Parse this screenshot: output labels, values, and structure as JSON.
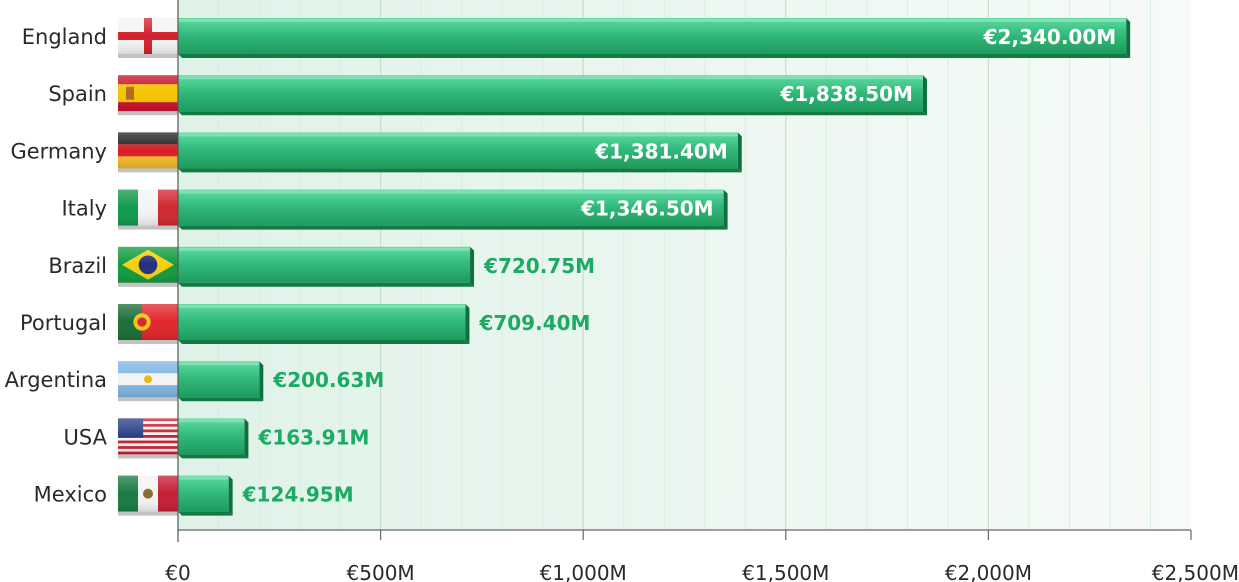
{
  "chart_data": {
    "type": "bar",
    "orientation": "horizontal",
    "categories": [
      "England",
      "Spain",
      "Germany",
      "Italy",
      "Brazil",
      "Portugal",
      "Argentina",
      "USA",
      "Mexico"
    ],
    "values": [
      2340.0,
      1838.5,
      1381.4,
      1346.5,
      720.75,
      709.4,
      200.63,
      163.91,
      124.95
    ],
    "value_labels": [
      "€2,340.00M",
      "€1,838.50M",
      "€1,381.40M",
      "€1,346.50M",
      "€720.75M",
      "€709.40M",
      "€200.63M",
      "€163.91M",
      "€124.95M"
    ],
    "flag_icons": [
      "england-flag-icon",
      "spain-flag-icon",
      "germany-flag-icon",
      "italy-flag-icon",
      "brazil-flag-icon",
      "portugal-flag-icon",
      "argentina-flag-icon",
      "usa-flag-icon",
      "mexico-flag-icon"
    ],
    "x_ticks": [
      0,
      500,
      1000,
      1500,
      2000,
      2500
    ],
    "x_tick_labels": [
      "€0",
      "€500M",
      "€1,000M",
      "€1,500M",
      "€2,000M",
      "€2,500M"
    ],
    "xlim": [
      0,
      2500
    ],
    "grid": true,
    "title": "",
    "xlabel": "",
    "ylabel": "",
    "colors": {
      "bar_top": "#4cd196",
      "bar_bottom": "#1f9a5f",
      "bar_side": "#0f6f3d",
      "label_inside": "#ffffff",
      "label_outside": "#1daa63",
      "grid": "#cfe6d9",
      "plot_bg": "#e6f5ee",
      "axis": "#555555"
    }
  }
}
